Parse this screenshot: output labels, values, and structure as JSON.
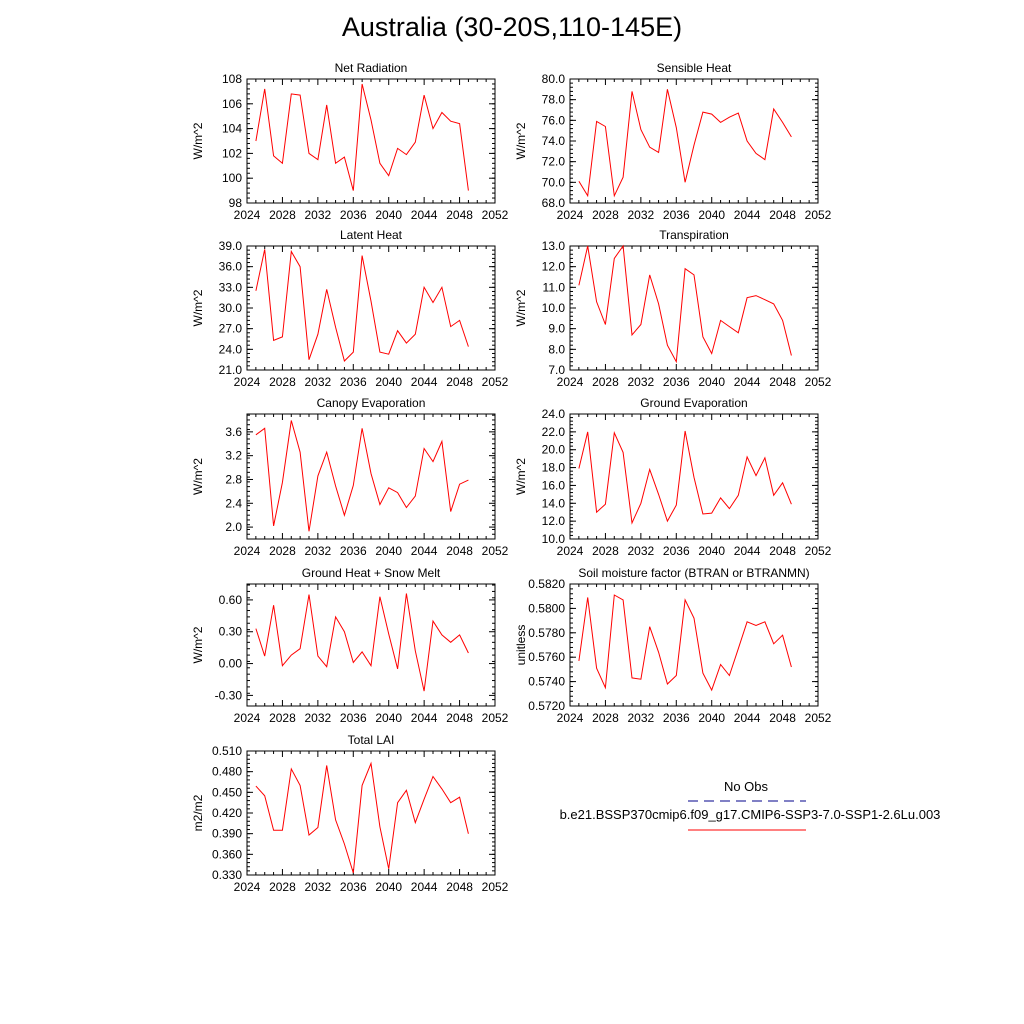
{
  "title": "Australia (30-20S,110-145E)",
  "colors": {
    "series": "#ff0000",
    "obs": "#00008b",
    "axis": "#000000"
  },
  "legend": {
    "obs_label": "No Obs",
    "case_label": "b.e21.BSSP370cmip6.f09_g17.CMIP6-SSP3-7.0-SSP1-2.6Lu.003"
  },
  "chart_data": [
    {
      "type": "line",
      "title": "Net Radiation",
      "ylabel": "W/m^2",
      "xlim": [
        2024,
        2052
      ],
      "ylim": [
        98,
        108
      ],
      "x_ticks": [
        "2024",
        "2028",
        "2032",
        "2036",
        "2040",
        "2044",
        "2048",
        "2052"
      ],
      "y_ticks": [
        "98",
        "100",
        "102",
        "104",
        "106",
        "108"
      ],
      "x": [
        2025,
        2026,
        2027,
        2028,
        2029,
        2030,
        2031,
        2032,
        2033,
        2034,
        2035,
        2036,
        2037,
        2038,
        2039,
        2040,
        2041,
        2042,
        2043,
        2044,
        2045,
        2046,
        2047,
        2048,
        2049
      ],
      "series": [
        {
          "values": [
            103.0,
            107.2,
            101.8,
            101.2,
            106.8,
            106.7,
            102.0,
            101.5,
            105.9,
            101.2,
            101.7,
            99.0,
            107.6,
            104.7,
            101.2,
            100.2,
            102.4,
            101.9,
            102.9,
            106.7,
            104.0,
            105.3,
            104.6,
            104.4,
            99.0
          ]
        }
      ]
    },
    {
      "type": "line",
      "title": "Sensible Heat",
      "ylabel": "W/m^2",
      "xlim": [
        2024,
        2052
      ],
      "ylim": [
        68,
        80
      ],
      "x_ticks": [
        "2024",
        "2028",
        "2032",
        "2036",
        "2040",
        "2044",
        "2048",
        "2052"
      ],
      "y_ticks": [
        "68.0",
        "70.0",
        "72.0",
        "74.0",
        "76.0",
        "78.0",
        "80.0"
      ],
      "x": [
        2025,
        2026,
        2027,
        2028,
        2029,
        2030,
        2031,
        2032,
        2033,
        2034,
        2035,
        2036,
        2037,
        2038,
        2039,
        2040,
        2041,
        2042,
        2043,
        2044,
        2045,
        2046,
        2047,
        2048,
        2049
      ],
      "series": [
        {
          "values": [
            70.1,
            68.7,
            75.9,
            75.4,
            68.7,
            70.5,
            78.8,
            75.1,
            73.4,
            72.9,
            79.0,
            75.3,
            70.0,
            73.6,
            76.8,
            76.6,
            75.8,
            76.3,
            76.7,
            74.0,
            72.8,
            72.2,
            77.1,
            75.8,
            74.4
          ]
        }
      ]
    },
    {
      "type": "line",
      "title": "Latent Heat",
      "ylabel": "W/m^2",
      "xlim": [
        2024,
        2052
      ],
      "ylim": [
        21,
        39
      ],
      "x_ticks": [
        "2024",
        "2028",
        "2032",
        "2036",
        "2040",
        "2044",
        "2048",
        "2052"
      ],
      "y_ticks": [
        "21.0",
        "24.0",
        "27.0",
        "30.0",
        "33.0",
        "36.0",
        "39.0"
      ],
      "x": [
        2025,
        2026,
        2027,
        2028,
        2029,
        2030,
        2031,
        2032,
        2033,
        2034,
        2035,
        2036,
        2037,
        2038,
        2039,
        2040,
        2041,
        2042,
        2043,
        2044,
        2045,
        2046,
        2047,
        2048,
        2049
      ],
      "series": [
        {
          "values": [
            32.5,
            38.5,
            25.3,
            25.8,
            38.2,
            36.0,
            22.5,
            26.2,
            32.7,
            27.2,
            22.3,
            23.6,
            37.6,
            31.0,
            23.6,
            23.3,
            26.7,
            24.9,
            26.2,
            33.0,
            30.8,
            33.0,
            27.3,
            28.2,
            24.4
          ]
        }
      ]
    },
    {
      "type": "line",
      "title": "Transpiration",
      "ylabel": "W/m^2",
      "xlim": [
        2024,
        2052
      ],
      "ylim": [
        7,
        13
      ],
      "x_ticks": [
        "2024",
        "2028",
        "2032",
        "2036",
        "2040",
        "2044",
        "2048",
        "2052"
      ],
      "y_ticks": [
        "7.0",
        "8.0",
        "9.0",
        "10.0",
        "11.0",
        "12.0",
        "13.0"
      ],
      "x": [
        2025,
        2026,
        2027,
        2028,
        2029,
        2030,
        2031,
        2032,
        2033,
        2034,
        2035,
        2036,
        2037,
        2038,
        2039,
        2040,
        2041,
        2042,
        2043,
        2044,
        2045,
        2046,
        2047,
        2048,
        2049
      ],
      "series": [
        {
          "values": [
            11.1,
            13.0,
            10.3,
            9.2,
            12.4,
            13.0,
            8.7,
            9.2,
            11.6,
            10.2,
            8.2,
            7.4,
            11.9,
            11.6,
            8.6,
            7.8,
            9.4,
            9.1,
            8.8,
            10.5,
            10.6,
            10.4,
            10.2,
            9.4,
            7.7
          ]
        }
      ]
    },
    {
      "type": "line",
      "title": "Canopy Evaporation",
      "ylabel": "W/m^2",
      "xlim": [
        2024,
        2052
      ],
      "ylim": [
        1.8,
        3.9
      ],
      "x_ticks": [
        "2024",
        "2028",
        "2032",
        "2036",
        "2040",
        "2044",
        "2048",
        "2052"
      ],
      "y_ticks": [
        "2.0",
        "2.4",
        "2.8",
        "3.2",
        "3.6"
      ],
      "x": [
        2025,
        2026,
        2027,
        2028,
        2029,
        2030,
        2031,
        2032,
        2033,
        2034,
        2035,
        2036,
        2037,
        2038,
        2039,
        2040,
        2041,
        2042,
        2043,
        2044,
        2045,
        2046,
        2047,
        2048,
        2049
      ],
      "series": [
        {
          "values": [
            3.55,
            3.66,
            2.02,
            2.75,
            3.79,
            3.26,
            1.93,
            2.86,
            3.26,
            2.69,
            2.2,
            2.7,
            3.66,
            2.9,
            2.38,
            2.66,
            2.58,
            2.33,
            2.52,
            3.32,
            3.1,
            3.44,
            2.26,
            2.72,
            2.79
          ]
        }
      ]
    },
    {
      "type": "line",
      "title": "Ground Evaporation",
      "ylabel": "W/m^2",
      "xlim": [
        2024,
        2052
      ],
      "ylim": [
        10,
        24
      ],
      "x_ticks": [
        "2024",
        "2028",
        "2032",
        "2036",
        "2040",
        "2044",
        "2048",
        "2052"
      ],
      "y_ticks": [
        "10.0",
        "12.0",
        "14.0",
        "16.0",
        "18.0",
        "20.0",
        "22.0",
        "24.0"
      ],
      "x": [
        2025,
        2026,
        2027,
        2028,
        2029,
        2030,
        2031,
        2032,
        2033,
        2034,
        2035,
        2036,
        2037,
        2038,
        2039,
        2040,
        2041,
        2042,
        2043,
        2044,
        2045,
        2046,
        2047,
        2048,
        2049
      ],
      "series": [
        {
          "values": [
            17.9,
            22.0,
            13.0,
            13.9,
            21.9,
            19.7,
            11.8,
            14.0,
            17.8,
            15.0,
            12.0,
            13.8,
            22.1,
            16.9,
            12.8,
            12.9,
            14.6,
            13.4,
            14.9,
            19.2,
            17.1,
            19.1,
            14.9,
            16.3,
            13.9
          ]
        }
      ]
    },
    {
      "type": "line",
      "title": "Ground Heat + Snow Melt",
      "ylabel": "W/m^2",
      "xlim": [
        2024,
        2052
      ],
      "ylim": [
        -0.4,
        0.75
      ],
      "x_ticks": [
        "2024",
        "2028",
        "2032",
        "2036",
        "2040",
        "2044",
        "2048",
        "2052"
      ],
      "y_ticks": [
        "-0.30",
        "0.00",
        "0.30",
        "0.60"
      ],
      "x": [
        2025,
        2026,
        2027,
        2028,
        2029,
        2030,
        2031,
        2032,
        2033,
        2034,
        2035,
        2036,
        2037,
        2038,
        2039,
        2040,
        2041,
        2042,
        2043,
        2044,
        2045,
        2046,
        2047,
        2048,
        2049
      ],
      "series": [
        {
          "values": [
            0.33,
            0.07,
            0.55,
            -0.02,
            0.08,
            0.14,
            0.65,
            0.07,
            -0.03,
            0.44,
            0.3,
            0.01,
            0.11,
            -0.02,
            0.63,
            0.28,
            -0.05,
            0.66,
            0.12,
            -0.26,
            0.4,
            0.27,
            0.2,
            0.27,
            0.1
          ]
        }
      ]
    },
    {
      "type": "line",
      "title": "Soil moisture factor (BTRAN or BTRANMN)",
      "ylabel": "unitless",
      "xlim": [
        2024,
        2052
      ],
      "ylim": [
        0.572,
        0.582
      ],
      "x_ticks": [
        "2024",
        "2028",
        "2032",
        "2036",
        "2040",
        "2044",
        "2048",
        "2052"
      ],
      "y_ticks": [
        "0.5720",
        "0.5740",
        "0.5760",
        "0.5780",
        "0.5800",
        "0.5820"
      ],
      "x": [
        2025,
        2026,
        2027,
        2028,
        2029,
        2030,
        2031,
        2032,
        2033,
        2034,
        2035,
        2036,
        2037,
        2038,
        2039,
        2040,
        2041,
        2042,
        2043,
        2044,
        2045,
        2046,
        2047,
        2048,
        2049
      ],
      "series": [
        {
          "values": [
            0.5757,
            0.5809,
            0.5751,
            0.5735,
            0.5811,
            0.5807,
            0.5743,
            0.5742,
            0.5785,
            0.5764,
            0.5738,
            0.5745,
            0.5807,
            0.5792,
            0.5747,
            0.5733,
            0.5754,
            0.5745,
            0.5767,
            0.5789,
            0.5786,
            0.5789,
            0.5771,
            0.5778,
            0.5752
          ]
        }
      ]
    },
    {
      "type": "line",
      "title": "Total LAI",
      "ylabel": "m2/m2",
      "xlim": [
        2024,
        2052
      ],
      "ylim": [
        0.33,
        0.51
      ],
      "x_ticks": [
        "2024",
        "2028",
        "2032",
        "2036",
        "2040",
        "2044",
        "2048",
        "2052"
      ],
      "y_ticks": [
        "0.330",
        "0.360",
        "0.390",
        "0.420",
        "0.450",
        "0.480",
        "0.510"
      ],
      "x": [
        2025,
        2026,
        2027,
        2028,
        2029,
        2030,
        2031,
        2032,
        2033,
        2034,
        2035,
        2036,
        2037,
        2038,
        2039,
        2040,
        2041,
        2042,
        2043,
        2044,
        2045,
        2046,
        2047,
        2048,
        2049
      ],
      "series": [
        {
          "values": [
            0.459,
            0.445,
            0.395,
            0.395,
            0.484,
            0.46,
            0.388,
            0.399,
            0.489,
            0.41,
            0.375,
            0.333,
            0.46,
            0.492,
            0.4,
            0.339,
            0.435,
            0.453,
            0.406,
            0.44,
            0.473,
            0.455,
            0.435,
            0.443,
            0.39
          ]
        }
      ]
    }
  ]
}
